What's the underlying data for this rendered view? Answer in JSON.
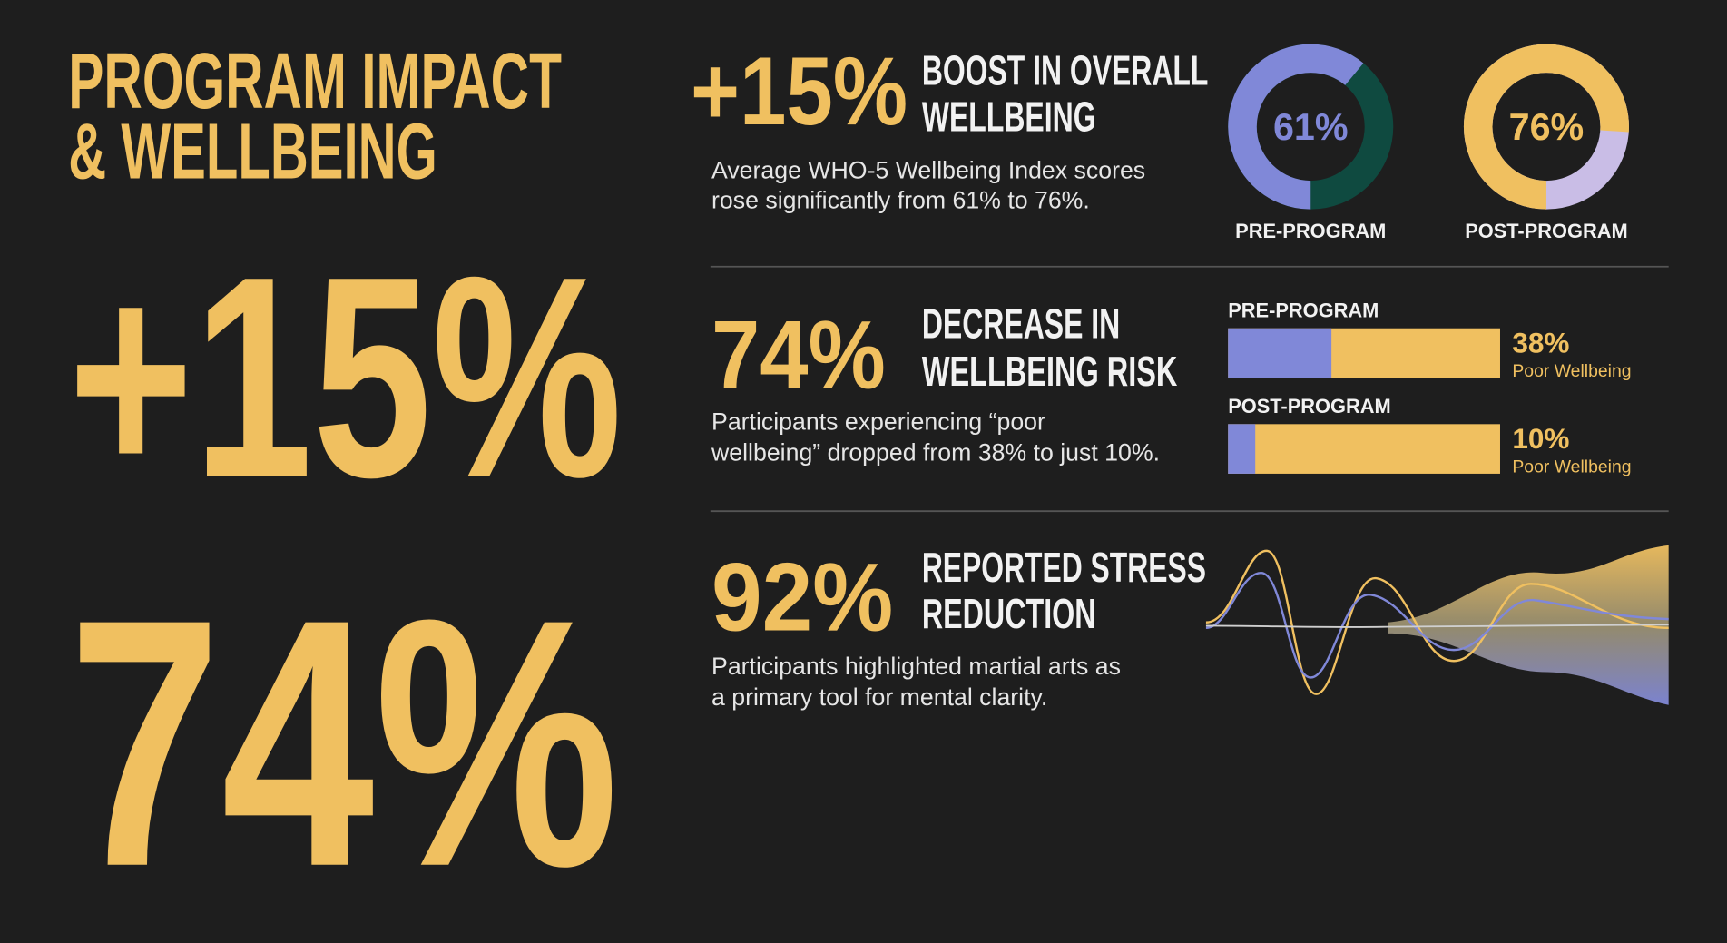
{
  "title": [
    "PROGRAM IMPACT",
    "& WELLBEING"
  ],
  "hero_stats": [
    "+15%",
    "74%"
  ],
  "sections": [
    {
      "stat": "+15%",
      "heading": [
        "BOOST IN OVERALL",
        "WELLBEING"
      ],
      "text": [
        "Average WHO-5 Wellbeing Index scores",
        "rose significantly from 61% to 76%."
      ]
    },
    {
      "stat": "74%",
      "heading": [
        "DECREASE IN",
        "WELLBEING RISK"
      ],
      "text": [
        "Participants experiencing “poor",
        "wellbeing” dropped from 38% to just 10%."
      ]
    },
    {
      "stat": "92%",
      "heading": [
        "REPORTED STRESS",
        "REDUCTION"
      ],
      "text": [
        "Participants highlighted martial arts as",
        "a primary tool for mental clarity."
      ]
    }
  ],
  "chart_data": [
    {
      "type": "donut",
      "categories": [
        "PRE-PROGRAM",
        "POST-PROGRAM"
      ],
      "values": [
        61,
        76
      ],
      "value_labels": [
        "61%",
        "76%"
      ],
      "colors": [
        "#8088d8",
        "#f0c060"
      ],
      "track_colors": [
        "#0f4a40",
        "#c9bde6"
      ]
    },
    {
      "type": "bar",
      "categories": [
        "PRE-PROGRAM",
        "POST-PROGRAM"
      ],
      "values": [
        38,
        10
      ],
      "value_labels": [
        "38%",
        "10%"
      ],
      "sublabel": "Poor Wellbeing",
      "xlim": [
        0,
        100
      ],
      "color": "#8088d8",
      "track_color": "#f0c060"
    }
  ]
}
